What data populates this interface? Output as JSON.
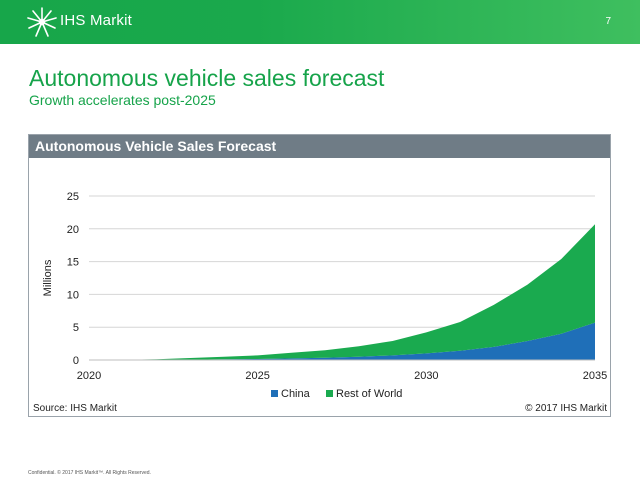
{
  "header": {
    "logo_text": "IHS Markit",
    "page_number": "7",
    "logo_icon": "starburst-logo-icon"
  },
  "slide": {
    "title": "Autonomous vehicle sales forecast",
    "subtitle": "Growth accelerates post-2025"
  },
  "panel": {
    "title": "Autonomous Vehicle Sales Forecast",
    "source": "Source: IHS Markit",
    "copyright": "© 2017 IHS Markit"
  },
  "footer": {
    "text": "Confidential. © 2017 IHS Markit™. All Rights Reserved."
  },
  "chart_data": {
    "type": "area",
    "stacked": true,
    "title": "Autonomous Vehicle Sales Forecast",
    "xlabel": "",
    "ylabel": "Millions",
    "xlim": [
      2020,
      2035
    ],
    "ylim": [
      0,
      25
    ],
    "x_ticks": [
      2020,
      2025,
      2030,
      2035
    ],
    "y_ticks": [
      0,
      5,
      10,
      15,
      20,
      25
    ],
    "grid": true,
    "legend_position": "bottom",
    "x": [
      2020,
      2021,
      2022,
      2023,
      2024,
      2025,
      2026,
      2027,
      2028,
      2029,
      2030,
      2031,
      2032,
      2033,
      2034,
      2035
    ],
    "series": [
      {
        "name": "China",
        "color": "#1f6fb8",
        "values": [
          0,
          0,
          0.02,
          0.05,
          0.1,
          0.15,
          0.25,
          0.35,
          0.5,
          0.7,
          1.0,
          1.4,
          2.0,
          2.9,
          4.0,
          5.7
        ]
      },
      {
        "name": "Rest of World",
        "color": "#1aaa4f",
        "values": [
          0,
          0.02,
          0.1,
          0.25,
          0.4,
          0.55,
          0.85,
          1.15,
          1.6,
          2.2,
          3.2,
          4.4,
          6.4,
          8.6,
          11.4,
          15.0
        ]
      }
    ]
  }
}
